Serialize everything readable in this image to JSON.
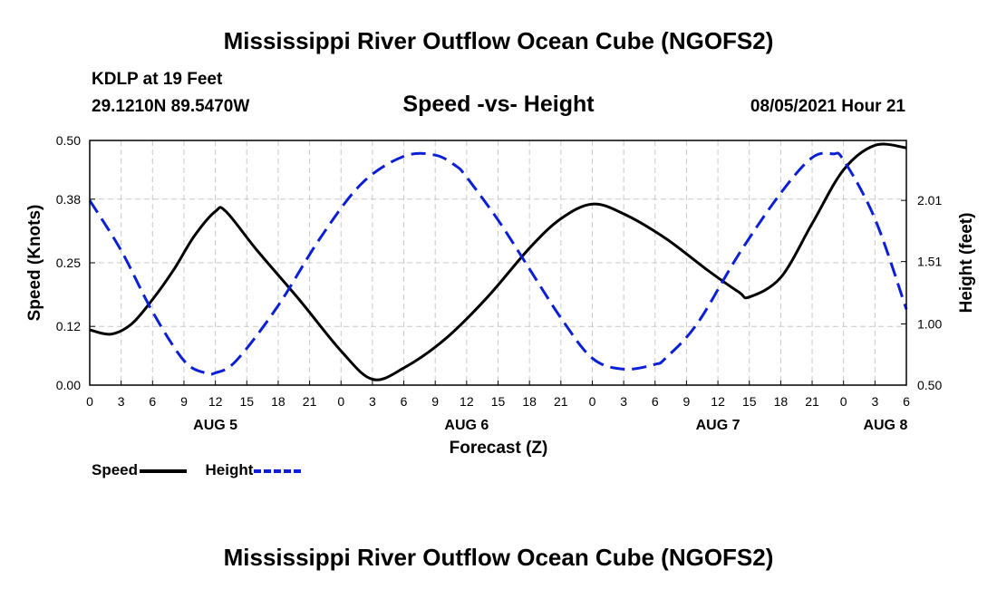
{
  "header": {
    "title": "Mississippi River Outflow Ocean Cube (NGOFS2)",
    "station": "KDLP at 19 Feet",
    "location": "29.1210N  89.5470W",
    "subtitle": "Speed -vs- Height",
    "datetime": "08/05/2021 Hour 21"
  },
  "footer": {
    "title": "Mississippi River Outflow Ocean Cube (NGOFS2)"
  },
  "legend": {
    "speed_label": "Speed",
    "height_label": "Height"
  },
  "colors": {
    "speed": "#000000",
    "height": "#0b1fd6",
    "grid": "#c8c8c8"
  },
  "chart_data": {
    "type": "line",
    "xlabel": "Forecast (Z)",
    "ylabel_left": "Speed (Knots)",
    "ylabel_right": "Height (feet)",
    "x_unit": "hours since 08/05/2021 00Z",
    "xlim": [
      0,
      78
    ],
    "ylim_left": [
      0,
      0.5
    ],
    "ylim_right": [
      0.5,
      2.5
    ],
    "x_ticks": [
      0,
      3,
      6,
      9,
      12,
      15,
      18,
      21,
      24,
      27,
      30,
      33,
      36,
      39,
      42,
      45,
      48,
      51,
      54,
      57,
      60,
      63,
      66,
      69,
      72,
      75,
      78
    ],
    "x_tick_labels": [
      "0",
      "3",
      "6",
      "9",
      "12",
      "15",
      "18",
      "21",
      "0",
      "3",
      "6",
      "9",
      "12",
      "15",
      "18",
      "21",
      "0",
      "3",
      "6",
      "9",
      "12",
      "15",
      "18",
      "21",
      "0",
      "3",
      "6"
    ],
    "date_labels": [
      {
        "x": 12,
        "label": "AUG 5"
      },
      {
        "x": 36,
        "label": "AUG 6"
      },
      {
        "x": 60,
        "label": "AUG 7"
      },
      {
        "x": 76,
        "label": "AUG 8"
      }
    ],
    "y_left_ticks": [
      0.0,
      0.12,
      0.25,
      0.38,
      0.5
    ],
    "y_left_tick_labels": [
      "0.00",
      "0.12",
      "0.25",
      "0.38",
      "0.50"
    ],
    "y_right_ticks": [
      0.5,
      1.0,
      1.51,
      2.01
    ],
    "y_right_tick_labels": [
      "0.50",
      "1.00",
      "1.51",
      "2.01"
    ],
    "grid": true,
    "legend_position": "bottom-left",
    "series": [
      {
        "name": "Speed",
        "axis": "left",
        "style": "solid",
        "x": [
          0,
          2,
          4,
          6,
          8,
          10,
          12,
          13,
          16,
          20,
          24,
          27,
          30,
          34,
          38,
          42,
          45,
          48,
          51,
          55,
          59,
          62,
          63,
          66,
          69,
          72,
          75,
          78
        ],
        "values": [
          0.113,
          0.104,
          0.125,
          0.175,
          0.235,
          0.305,
          0.355,
          0.355,
          0.275,
          0.175,
          0.07,
          0.012,
          0.035,
          0.095,
          0.18,
          0.28,
          0.34,
          0.37,
          0.35,
          0.3,
          0.235,
          0.19,
          0.18,
          0.22,
          0.33,
          0.44,
          0.49,
          0.485
        ]
      },
      {
        "name": "Height",
        "axis": "right",
        "style": "dashed",
        "x": [
          0,
          3,
          6,
          9,
          11,
          12,
          14,
          18,
          22,
          26,
          30,
          33,
          35,
          36,
          39,
          42,
          45,
          48,
          51,
          54,
          55,
          58,
          62,
          66,
          69,
          71,
          72,
          75,
          78
        ],
        "values": [
          2.01,
          1.6,
          1.1,
          0.7,
          0.6,
          0.6,
          0.7,
          1.15,
          1.7,
          2.15,
          2.37,
          2.38,
          2.29,
          2.2,
          1.85,
          1.45,
          1.05,
          0.72,
          0.63,
          0.67,
          0.72,
          1.0,
          1.57,
          2.07,
          2.36,
          2.39,
          2.34,
          1.86,
          1.12
        ]
      }
    ]
  }
}
